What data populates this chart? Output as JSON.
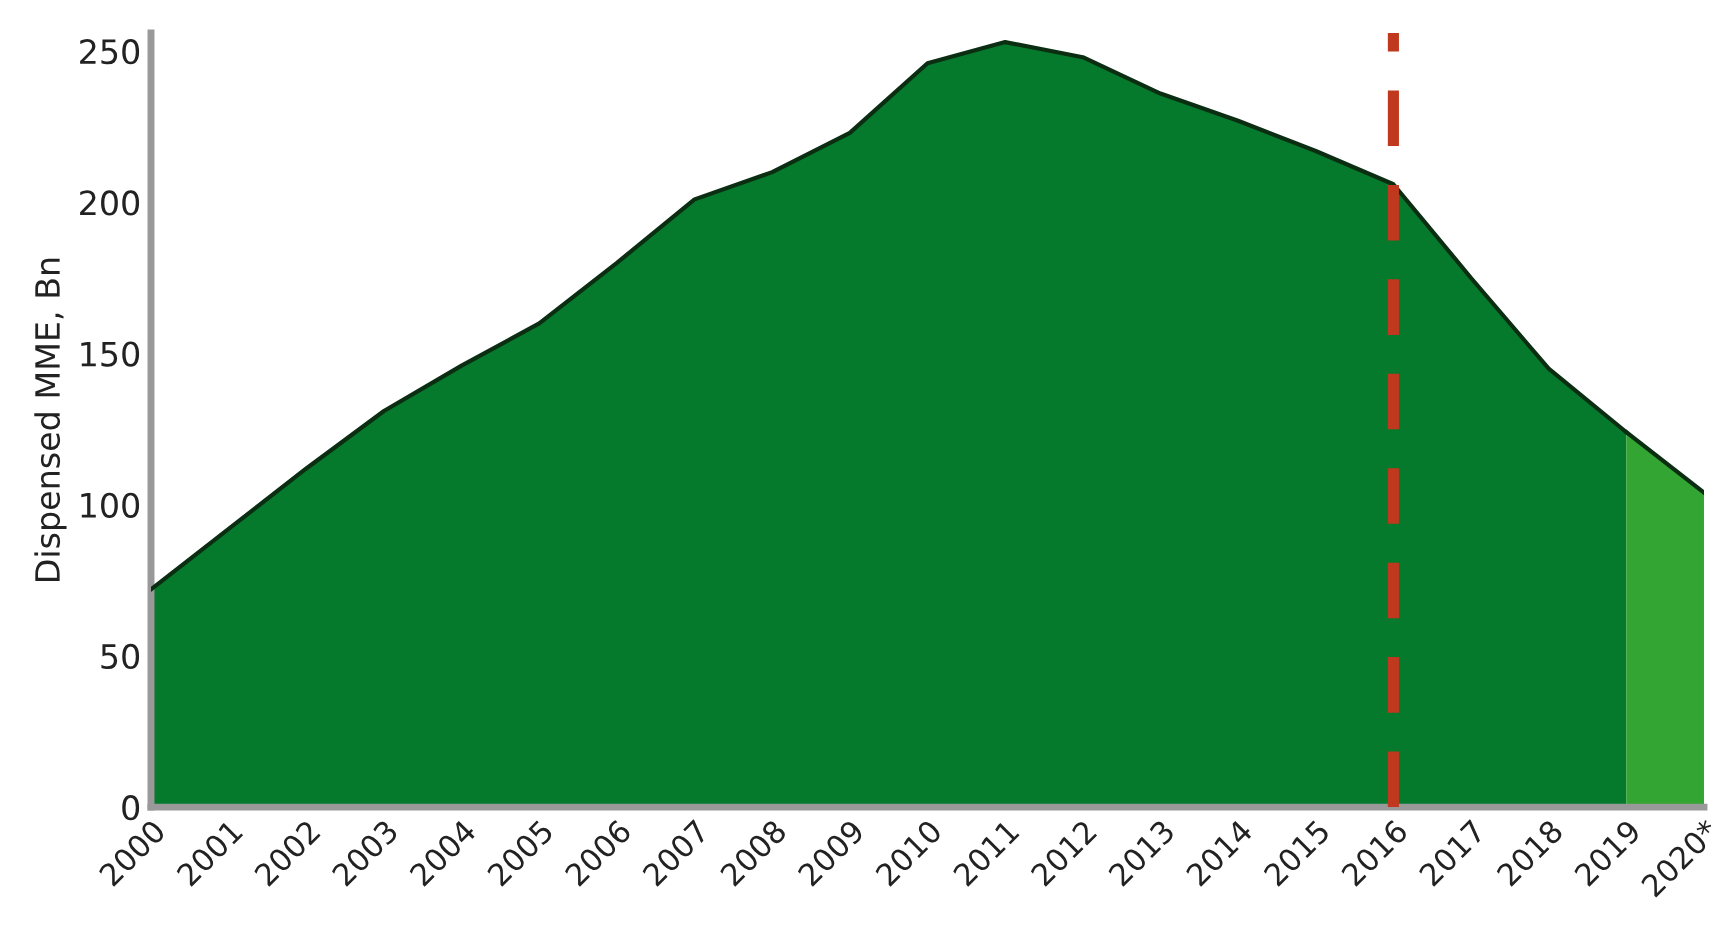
{
  "chart_data": {
    "type": "area",
    "ylabel": "Dispensed MME, Bn",
    "categories": [
      "2000",
      "2001",
      "2002",
      "2003",
      "2004",
      "2005",
      "2006",
      "2007",
      "2008",
      "2009",
      "2010",
      "2011",
      "2012",
      "2013",
      "2014",
      "2015",
      "2016",
      "2017",
      "2018",
      "2019",
      "2020*"
    ],
    "series": [
      {
        "color": "#057a2c",
        "values": [
          72,
          92,
          112,
          131,
          146,
          160,
          180,
          201,
          210,
          223,
          246,
          253,
          248,
          236,
          227,
          217,
          206,
          175,
          145,
          124,
          null
        ]
      },
      {
        "color": "#33a532",
        "values": [
          null,
          null,
          null,
          null,
          null,
          null,
          null,
          null,
          null,
          null,
          null,
          null,
          null,
          null,
          null,
          null,
          null,
          null,
          null,
          124,
          104
        ]
      }
    ],
    "ylim": [
      0,
      256
    ],
    "yticks": [
      0,
      50,
      100,
      150,
      200,
      250
    ],
    "grid": false,
    "legend": false,
    "ref_lines": [
      {
        "axis": "x",
        "value": "2016",
        "color": "#c0391f",
        "line_style": "dashed"
      }
    ]
  }
}
